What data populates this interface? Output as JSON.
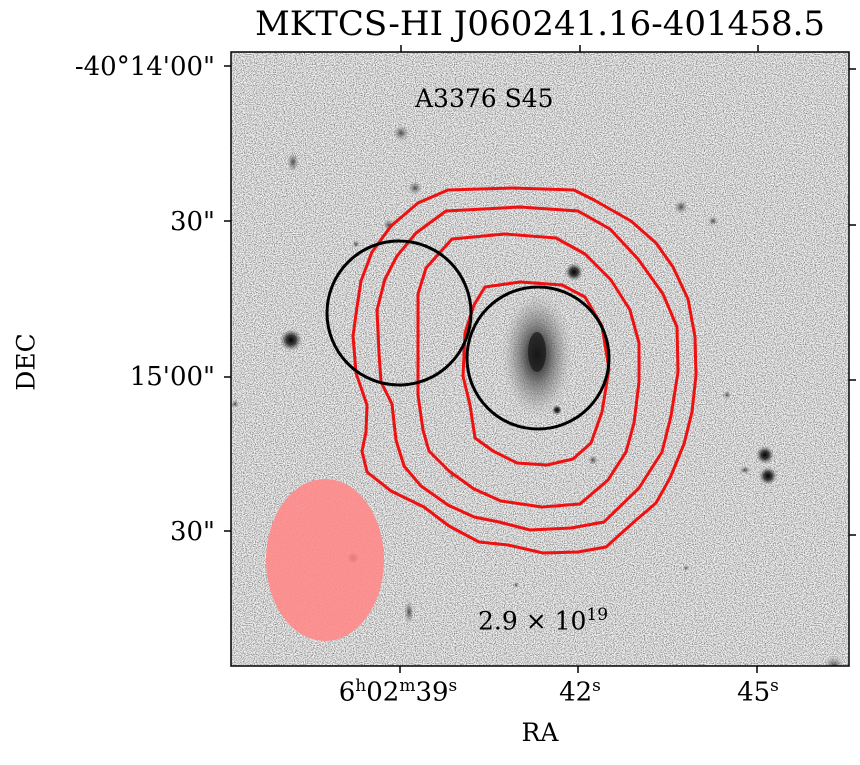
{
  "figure": {
    "title": "MKTCS-HI J060241.16-401458.5",
    "galaxy_label": "A3376 S45",
    "column_density": {
      "base": "2.9 × 10",
      "exponent": "19"
    },
    "xlabel": "RA",
    "ylabel": "DEC",
    "yticks": [
      "-40°14'00\"",
      "30\"",
      "15'00\"",
      "30\""
    ],
    "xticks": [
      {
        "main": "6",
        "sup1": "h",
        "mid": "02",
        "sup2": "m",
        "val": "39",
        "sup3": "s"
      },
      {
        "val": "42",
        "sup3": "s"
      },
      {
        "val": "45",
        "sup3": "s"
      }
    ],
    "colors": {
      "contour": "#ee1111",
      "beam": "#ff8a8a",
      "marker": "#000000",
      "frame": "#000000"
    }
  }
}
